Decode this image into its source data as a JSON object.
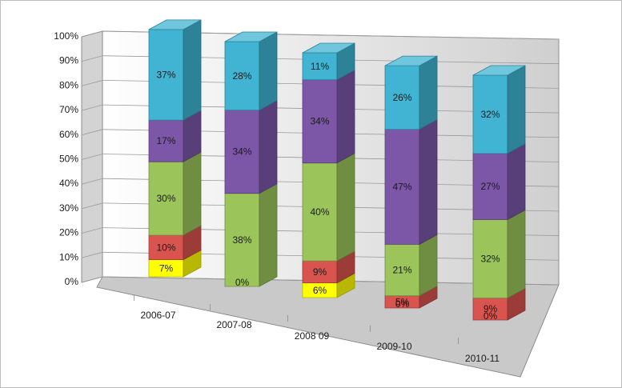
{
  "chart_data": {
    "type": "bar",
    "stacked": true,
    "percent": true,
    "three_d": true,
    "title": "",
    "xlabel": "",
    "ylabel": "",
    "ylim": [
      0,
      100
    ],
    "y_ticks": [
      "0%",
      "10%",
      "20%",
      "30%",
      "40%",
      "50%",
      "60%",
      "70%",
      "80%",
      "90%",
      "100%"
    ],
    "grid": true,
    "legend": "none",
    "categories": [
      "2006-07",
      "2007-08",
      "2008 09",
      "2009-10",
      "2010-11"
    ],
    "series": [
      {
        "color": "#ffff00",
        "values": [
          7,
          0,
          6,
          0,
          0
        ],
        "labels": [
          "7%",
          "",
          "6%",
          "0%",
          "0%"
        ]
      },
      {
        "color": "#d9534f",
        "values": [
          10,
          0,
          9,
          5,
          9
        ],
        "labels": [
          "10%",
          "0%",
          "9%",
          "5%",
          "9%"
        ]
      },
      {
        "color": "#9bc55a",
        "values": [
          30,
          38,
          40,
          21,
          32
        ],
        "labels": [
          "30%",
          "38%",
          "40%",
          "21%",
          "32%"
        ]
      },
      {
        "color": "#7c57a8",
        "values": [
          17,
          34,
          34,
          47,
          27
        ],
        "labels": [
          "17%",
          "34%",
          "34%",
          "47%",
          "27%"
        ]
      },
      {
        "color": "#40b4d2",
        "values": [
          37,
          28,
          11,
          26,
          32
        ],
        "labels": [
          "37%",
          "28%",
          "11%",
          "26%",
          "32%"
        ]
      }
    ]
  }
}
